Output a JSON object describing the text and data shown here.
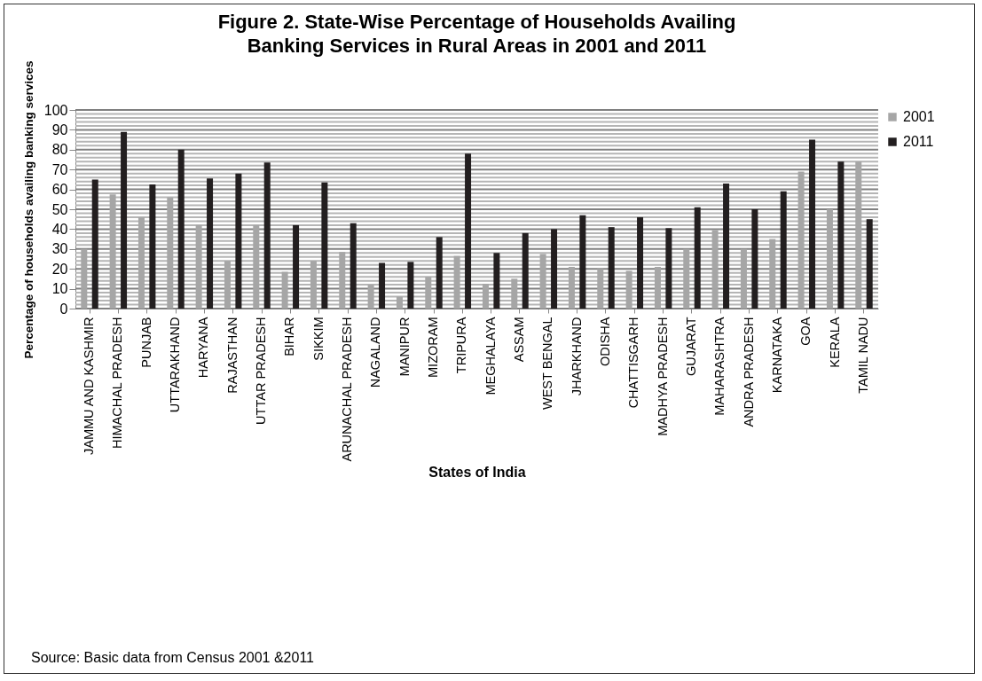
{
  "chart_data": {
    "type": "bar",
    "title": "Figure 2. State-Wise Percentage of Households Availing Banking Services in Rural Areas in 2001 and 2011",
    "xlabel": "States of India",
    "ylabel": "Percentage of households availing banking services",
    "categories": [
      "JAMMU AND KASHMIR",
      "HIMACHAL PRADESH",
      "PUNJAB",
      "UTTARAKHAND",
      "HARYANA",
      "RAJASTHAN",
      "UTTAR PRADESH",
      "BIHAR",
      "SIKKIM",
      "ARUNACHAL PRADESH",
      "NAGALAND",
      "MANIPUR",
      "MIZORAM",
      "TRIPURA",
      "MEGHALAYA",
      "ASSAM",
      "WEST BENGAL",
      "JHARKHAND",
      "ODISHA",
      "CHATTISGARH",
      "MADHYA PRADESH",
      "GUJARAT",
      "MAHARASHTRA",
      "ANDRA PRADESH",
      "KARNATAKA",
      "GOA",
      "KERALA",
      "TAMIL NADU"
    ],
    "series": [
      {
        "name": "2001",
        "color": "#a6a6a6",
        "values": [
          30,
          57.5,
          46,
          56,
          42,
          24,
          42,
          18.5,
          24,
          28.5,
          12,
          6,
          16,
          26.5,
          12.5,
          15,
          27.5,
          21,
          20,
          19,
          21,
          30,
          39.5,
          30,
          35,
          69,
          50,
          74
        ]
      },
      {
        "name": "2011",
        "color": "#231f20",
        "values": [
          65,
          89,
          62.5,
          80,
          65.5,
          68,
          73.5,
          42,
          63.5,
          43,
          23,
          23.5,
          36,
          78,
          28,
          38,
          40,
          47,
          41,
          46,
          40.5,
          51,
          63,
          50,
          59,
          85,
          74,
          45
        ]
      }
    ],
    "ylim": [
      0,
      100
    ],
    "yticks": [
      0,
      {
        "value": 2,
        "label": null
      },
      {
        "value": 4,
        "label": null
      },
      {
        "value": 6,
        "label": null
      },
      {
        "value": 8,
        "label": null
      },
      10,
      {
        "value": 12,
        "label": null
      },
      {
        "value": 14,
        "label": null
      },
      {
        "value": 16,
        "label": null
      },
      {
        "value": 18,
        "label": null
      },
      20,
      {
        "value": 22,
        "label": null
      },
      {
        "value": 24,
        "label": null
      },
      {
        "value": 26,
        "label": null
      },
      {
        "value": 28,
        "label": null
      },
      30,
      {
        "value": 32,
        "label": null
      },
      {
        "value": 34,
        "label": null
      },
      {
        "value": 36,
        "label": null
      },
      {
        "value": 38,
        "label": null
      },
      40,
      {
        "value": 42,
        "label": null
      },
      {
        "value": 44,
        "label": null
      },
      {
        "value": 46,
        "label": null
      },
      {
        "value": 48,
        "label": null
      },
      50,
      {
        "value": 52,
        "label": null
      },
      {
        "value": 54,
        "label": null
      },
      {
        "value": 56,
        "label": null
      },
      {
        "value": 58,
        "label": null
      },
      60,
      {
        "value": 62,
        "label": null
      },
      {
        "value": 64,
        "label": null
      },
      {
        "value": 66,
        "label": null
      },
      {
        "value": 68,
        "label": null
      },
      70,
      {
        "value": 72,
        "label": null
      },
      {
        "value": 74,
        "label": null
      },
      {
        "value": 76,
        "label": null
      },
      {
        "value": 78,
        "label": null
      },
      80,
      {
        "value": 82,
        "label": null
      },
      {
        "value": 84,
        "label": null
      },
      {
        "value": 86,
        "label": null
      },
      {
        "value": 88,
        "label": null
      },
      90,
      {
        "value": 92,
        "label": null
      },
      {
        "value": 94,
        "label": null
      },
      {
        "value": 96,
        "label": null
      },
      {
        "value": 98,
        "label": null
      },
      100
    ],
    "grid": true,
    "legend": "right",
    "annotations": [
      "Source: Basic data from Census 2001 &2011"
    ]
  }
}
